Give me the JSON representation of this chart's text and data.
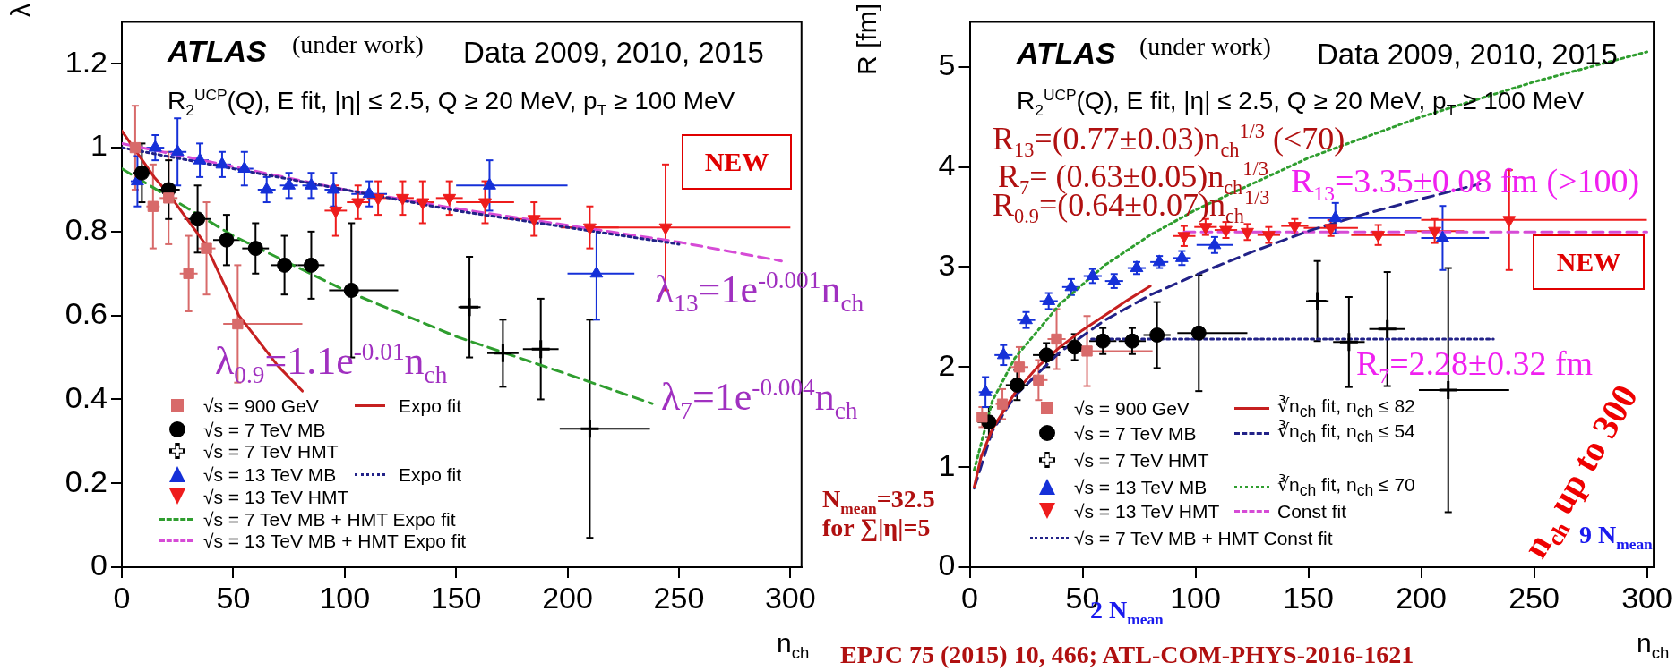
{
  "chart_data": [
    {
      "type": "scatter",
      "xlabel": "n$_{ch}$",
      "ylabel": "λ",
      "xlim": [
        0,
        305
      ],
      "ylim": [
        0,
        1.3
      ],
      "xticks": [
        0,
        50,
        100,
        150,
        200,
        250,
        300
      ],
      "yticks": [
        0,
        0.2,
        0.4,
        0.6,
        0.8,
        1,
        1.2
      ],
      "legend": "bottom left",
      "annotations": [
        "ATLAS",
        "(under work)",
        "Data 2009, 2010, 2015",
        "R$_{2}$$^{UCP}$(Q), E fit, |η| ≤ 2.5, Q ≥ 20 MeV, p$_{T}$ ≥ 100 MeV",
        "NEW",
        "λ$_{13}$=1e$^{-0.001}$n$_{ch}$",
        "λ$_{0.9}$=1.1e$^{-0.01}$n$_{ch}$",
        "λ$_{7}$=1e$^{-0.004}$n$_{ch}$"
      ],
      "series": [
        {
          "name": "√s = 900 GeV",
          "type": "scatter",
          "marker": "square",
          "color": "#d86a6a",
          "x": [
            6,
            14,
            21,
            30,
            38,
            52
          ],
          "values": [
            1.0,
            0.86,
            0.88,
            0.7,
            0.76,
            0.58
          ],
          "errors": [
            0.1,
            0.1,
            0.11,
            0.09,
            0.11,
            0.14
          ],
          "xerrors": [
            2,
            3,
            4,
            4,
            4,
            [
              45.5,
              81
            ]
          ]
        },
        {
          "name": "√s = 7 TeV MB",
          "type": "scatter",
          "marker": "circle",
          "color": "#000000",
          "x": [
            9,
            21,
            34,
            47,
            60,
            73,
            85,
            103
          ],
          "values": [
            0.94,
            0.9,
            0.83,
            0.78,
            0.76,
            0.72,
            0.72,
            0.66
          ],
          "errors": [
            0.07,
            0.07,
            0.08,
            0.06,
            0.06,
            0.07,
            0.08,
            0.16
          ],
          "xerrors": [
            4,
            5,
            6,
            6,
            6,
            6,
            6,
            [
              93,
              124
            ]
          ]
        },
        {
          "name": "√s = 7 TeV HMT",
          "type": "scatter",
          "marker": "cross",
          "color": "#000000",
          "x": [
            156,
            171,
            188,
            210
          ],
          "values": [
            0.62,
            0.51,
            0.52,
            0.33
          ],
          "errors": [
            0.12,
            0.08,
            0.12,
            0.26
          ],
          "xerrors": [
            5,
            7,
            8,
            [
              196.5,
              237
            ]
          ]
        },
        {
          "name": "√s = 13 TeV MB",
          "type": "scatter",
          "marker": "triangle",
          "color": "#1530d8",
          "x": [
            7,
            15,
            25,
            35,
            45,
            55,
            65,
            75,
            85,
            95,
            111,
            165,
            213
          ],
          "values": [
            0.92,
            1.0,
            0.99,
            0.97,
            0.96,
            0.95,
            0.9,
            0.91,
            0.91,
            0.9,
            0.89,
            0.91,
            0.7
          ],
          "errors": [
            0.06,
            0.03,
            0.08,
            0.04,
            0.03,
            0.04,
            0.03,
            0.03,
            0.03,
            0.04,
            0.03,
            0.06,
            0.11
          ],
          "xerrors": [
            3,
            4,
            4,
            4,
            4,
            4,
            4,
            4,
            4,
            4,
            8,
            [
              150,
              200
            ],
            [
              200,
              230
            ]
          ]
        },
        {
          "name": "√s = 13 TeV HMT",
          "type": "scatter",
          "marker": "triangle-down",
          "color": "#ee1c1c",
          "x": [
            96,
            106,
            115,
            126,
            135,
            147,
            163,
            185,
            210,
            244
          ],
          "values": [
            0.85,
            0.87,
            0.88,
            0.88,
            0.87,
            0.88,
            0.87,
            0.83,
            0.81,
            0.81
          ],
          "errors": [
            0.06,
            0.04,
            0.04,
            0.04,
            0.05,
            0.04,
            0.05,
            0.04,
            0.05,
            0.15
          ],
          "xerrors": [
            5,
            5,
            5,
            5,
            5,
            6,
            13,
            12,
            13,
            [
              200,
              300
            ]
          ]
        },
        {
          "name": "Expo fit",
          "type": "line",
          "line_style": "solid",
          "color": "#c62020",
          "x": [
            0,
            14.5,
            21,
            37.5,
            52.5,
            70,
            81
          ],
          "values": [
            1.04,
            0.93,
            0.89,
            0.77,
            0.6,
            0.48,
            0.42
          ]
        },
        {
          "name": "Expo fit",
          "type": "line",
          "line_style": "dotted",
          "color": "#222288",
          "x": [
            0,
            50,
            100,
            150,
            200,
            250
          ],
          "values": [
            1.0,
            0.95,
            0.9,
            0.85,
            0.81,
            0.77
          ]
        },
        {
          "name": "√s = 7 TeV MB + HMT Expo fit",
          "type": "line",
          "line_style": "dashed",
          "color": "#2f9e2f",
          "x": [
            0,
            50,
            100,
            150,
            200,
            238
          ],
          "values": [
            0.95,
            0.79,
            0.66,
            0.55,
            0.46,
            0.39
          ]
        },
        {
          "name": "√s = 13 TeV MB + HMT Expo fit",
          "type": "line",
          "line_style": "dashed",
          "color": "#d64bd6",
          "x": [
            0,
            50,
            100,
            150,
            200,
            250,
            296
          ],
          "values": [
            1.01,
            0.955,
            0.9,
            0.855,
            0.815,
            0.775,
            0.73
          ]
        }
      ]
    },
    {
      "type": "scatter",
      "xlabel": "n$_{ch}$",
      "ylabel": "R [fm]",
      "xlim": [
        0,
        303
      ],
      "ylim": [
        0,
        5.45
      ],
      "xticks": [
        0,
        50,
        100,
        150,
        200,
        250,
        300
      ],
      "yticks": [
        0,
        1,
        2,
        3,
        4,
        5
      ],
      "legend": "bottom left",
      "annotations": [
        "ATLAS",
        "(under work)",
        "Data 2009, 2010, 2015",
        "R$_{2}$$^{UCP}$(Q), E fit, |η| ≤ 2.5, Q ≥ 20 MeV, p$_{T}$ ≥ 100 MeV",
        "R$_{13}$=(0.77±0.03)n$_{ch}$$^{1/3}$ (<70)",
        "R$_{7}$= (0.63±0.05)n$_{ch}$$^{1/3}$",
        "R$_{0.9}$=(0.64±0.07)n$_{ch}$$^{1/3}$",
        "R$_{13}$=3.35±0.08 fm (>100)",
        "NEW",
        "R$_{7}$=2.28±0.32 fm",
        "n$_{ch}$ up to 300",
        "9 N$_{mean}$",
        "2 N$_{mean}$",
        "N$_{mean}$=32.5",
        "for ∑|η|=5",
        "EPJC 75 (2015) 10, 466; ATL-COM-PHYS-2016-1621"
      ],
      "series": [
        {
          "name": "√s = 900 GeV",
          "type": "scatter",
          "marker": "square",
          "color": "#d86a6a",
          "x": [
            5.5,
            14.5,
            22,
            30.5,
            38.5,
            52
          ],
          "values": [
            1.5,
            1.63,
            2.0,
            1.87,
            2.28,
            2.16
          ],
          "errors": [
            0.1,
            0.15,
            0.2,
            0.2,
            0.3,
            0.35
          ],
          "xerrors": [
            2,
            3,
            4,
            4,
            4,
            [
              45,
              81
            ]
          ]
        },
        {
          "name": "√s = 7 TeV MB",
          "type": "scatter",
          "marker": "circle",
          "color": "#000000",
          "x": [
            8.5,
            21,
            34,
            46.5,
            59,
            72,
            83,
            101.5
          ],
          "values": [
            1.45,
            1.82,
            2.12,
            2.2,
            2.26,
            2.26,
            2.32,
            2.34
          ],
          "errors": [
            0.15,
            0.15,
            0.12,
            0.13,
            0.13,
            0.13,
            0.33,
            0.58
          ],
          "xerrors": [
            5,
            5,
            6,
            6,
            6,
            6,
            6,
            [
              92,
              123
            ]
          ]
        },
        {
          "name": "√s = 7 TeV HMT",
          "type": "scatter",
          "marker": "cross",
          "color": "#000000",
          "x": [
            154,
            168,
            185,
            212
          ],
          "values": [
            2.66,
            2.25,
            2.38,
            1.77
          ],
          "errors": [
            0.4,
            0.45,
            0.57,
            1.22
          ],
          "xerrors": [
            5,
            7,
            8,
            [
              199,
              239
            ]
          ]
        },
        {
          "name": "√s = 13 TeV MB",
          "type": "scatter",
          "marker": "triangle",
          "color": "#1530d8",
          "x": [
            7,
            15,
            25,
            35,
            45,
            54.5,
            64,
            74,
            84,
            94,
            108.5,
            162,
            209.5
          ],
          "values": [
            1.75,
            2.12,
            2.47,
            2.66,
            2.8,
            2.91,
            2.86,
            2.99,
            3.05,
            3.09,
            3.22,
            3.49,
            3.29
          ],
          "errors": [
            0.15,
            0.1,
            0.08,
            0.08,
            0.08,
            0.07,
            0.07,
            0.06,
            0.06,
            0.07,
            0.08,
            0.15,
            0.32
          ],
          "xerrors": [
            3,
            4,
            4,
            4,
            4,
            4,
            4,
            4,
            4,
            4,
            8,
            [
              150,
              200
            ],
            [
              200,
              230
            ]
          ]
        },
        {
          "name": "√s = 13 TeV HMT",
          "type": "scatter",
          "marker": "triangle-down",
          "color": "#ee1c1c",
          "x": [
            95,
            104.5,
            113.5,
            123,
            132.5,
            144,
            160,
            181,
            206,
            239
          ],
          "values": [
            3.31,
            3.4,
            3.37,
            3.35,
            3.32,
            3.41,
            3.39,
            3.32,
            3.36,
            3.47
          ],
          "errors": [
            0.1,
            0.08,
            0.08,
            0.08,
            0.08,
            0.07,
            0.08,
            0.1,
            0.12,
            0.5
          ],
          "xerrors": [
            5,
            5,
            5,
            5,
            5,
            6,
            12,
            12,
            13,
            [
              200,
              300
            ]
          ]
        },
        {
          "name": "∛n$_{ch}$ fit, n$_{ch}$ ≤ 82",
          "type": "line",
          "line_style": "solid",
          "color": "#c62020",
          "x": [
            2,
            5,
            10,
            20,
            30,
            40,
            50,
            60,
            70,
            80
          ],
          "values": [
            0.8,
            1.1,
            1.38,
            1.74,
            2.0,
            2.2,
            2.37,
            2.52,
            2.67,
            2.81
          ]
        },
        {
          "name": "∛n$_{ch}$ fit, n$_{ch}$ ≤ 54",
          "type": "line",
          "line_style": "dashed",
          "color": "#222288",
          "x": [
            2,
            10,
            20,
            40,
            60,
            80,
            100,
            125,
            150,
            175,
            200,
            226
          ],
          "values": [
            0.79,
            1.36,
            1.71,
            2.15,
            2.47,
            2.72,
            2.92,
            3.15,
            3.36,
            3.53,
            3.68,
            3.83
          ]
        },
        {
          "name": "∛n$_{ch}$ fit, n$_{ch}$ ≤ 70",
          "type": "line",
          "line_style": "dotted",
          "color": "#2f9e2f",
          "x": [
            2,
            10,
            20,
            40,
            60,
            80,
            100,
            150,
            200,
            250,
            300
          ],
          "values": [
            0.97,
            1.66,
            2.09,
            2.63,
            3.02,
            3.32,
            3.57,
            4.09,
            4.5,
            4.85,
            5.15
          ]
        },
        {
          "name": "Const fit",
          "type": "line",
          "line_style": "dashed",
          "color": "#d64bd6",
          "x": [
            95,
            300
          ],
          "values": [
            3.35,
            3.35
          ]
        },
        {
          "name": "√s = 7 TeV MB + HMT Const fit",
          "type": "line",
          "line_style": "dotted",
          "color": "#222288",
          "x": [
            54,
            232
          ],
          "values": [
            2.28,
            2.28
          ]
        }
      ]
    }
  ]
}
